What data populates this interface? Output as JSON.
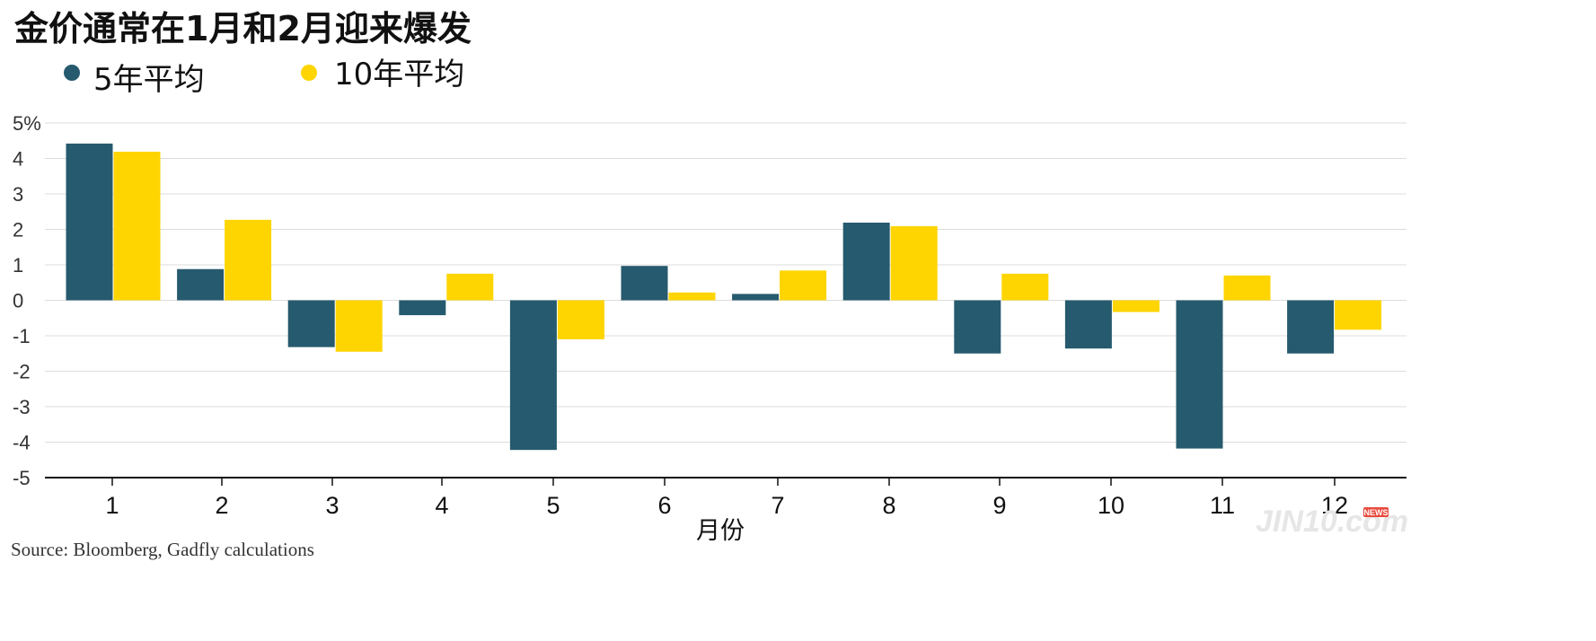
{
  "chart_data": {
    "type": "bar",
    "title": "金价通常在1月和2月迎来爆发",
    "xlabel": "月份",
    "ylabel": "",
    "categories": [
      "1",
      "2",
      "3",
      "4",
      "5",
      "6",
      "7",
      "8",
      "9",
      "10",
      "11",
      "12"
    ],
    "series": [
      {
        "name": "5年平均",
        "color": "#265a6e",
        "values": [
          4.42,
          0.88,
          -1.32,
          -0.42,
          -4.22,
          0.97,
          0.18,
          2.19,
          -1.5,
          -1.36,
          -4.18,
          -1.5
        ]
      },
      {
        "name": "10年平均",
        "color": "#fed500",
        "values": [
          4.19,
          2.27,
          -1.45,
          0.75,
          -1.1,
          0.22,
          0.84,
          2.09,
          0.75,
          -0.33,
          0.7,
          -0.83
        ]
      }
    ],
    "ylim": [
      -5,
      5
    ],
    "yticks": [
      5,
      4,
      3,
      2,
      1,
      0,
      -1,
      -2,
      -3,
      -4,
      -5
    ],
    "ytick_labels": [
      "5%",
      "4",
      "3",
      "2",
      "1",
      "0",
      "-1",
      "-2",
      "-3",
      "-4",
      "-5"
    ],
    "grid": true,
    "legend_position": "top-left",
    "source": "Source: Bloomberg, Gadfly calculations"
  },
  "watermark": {
    "text": "JIN10.com",
    "badge": "NEWS"
  }
}
